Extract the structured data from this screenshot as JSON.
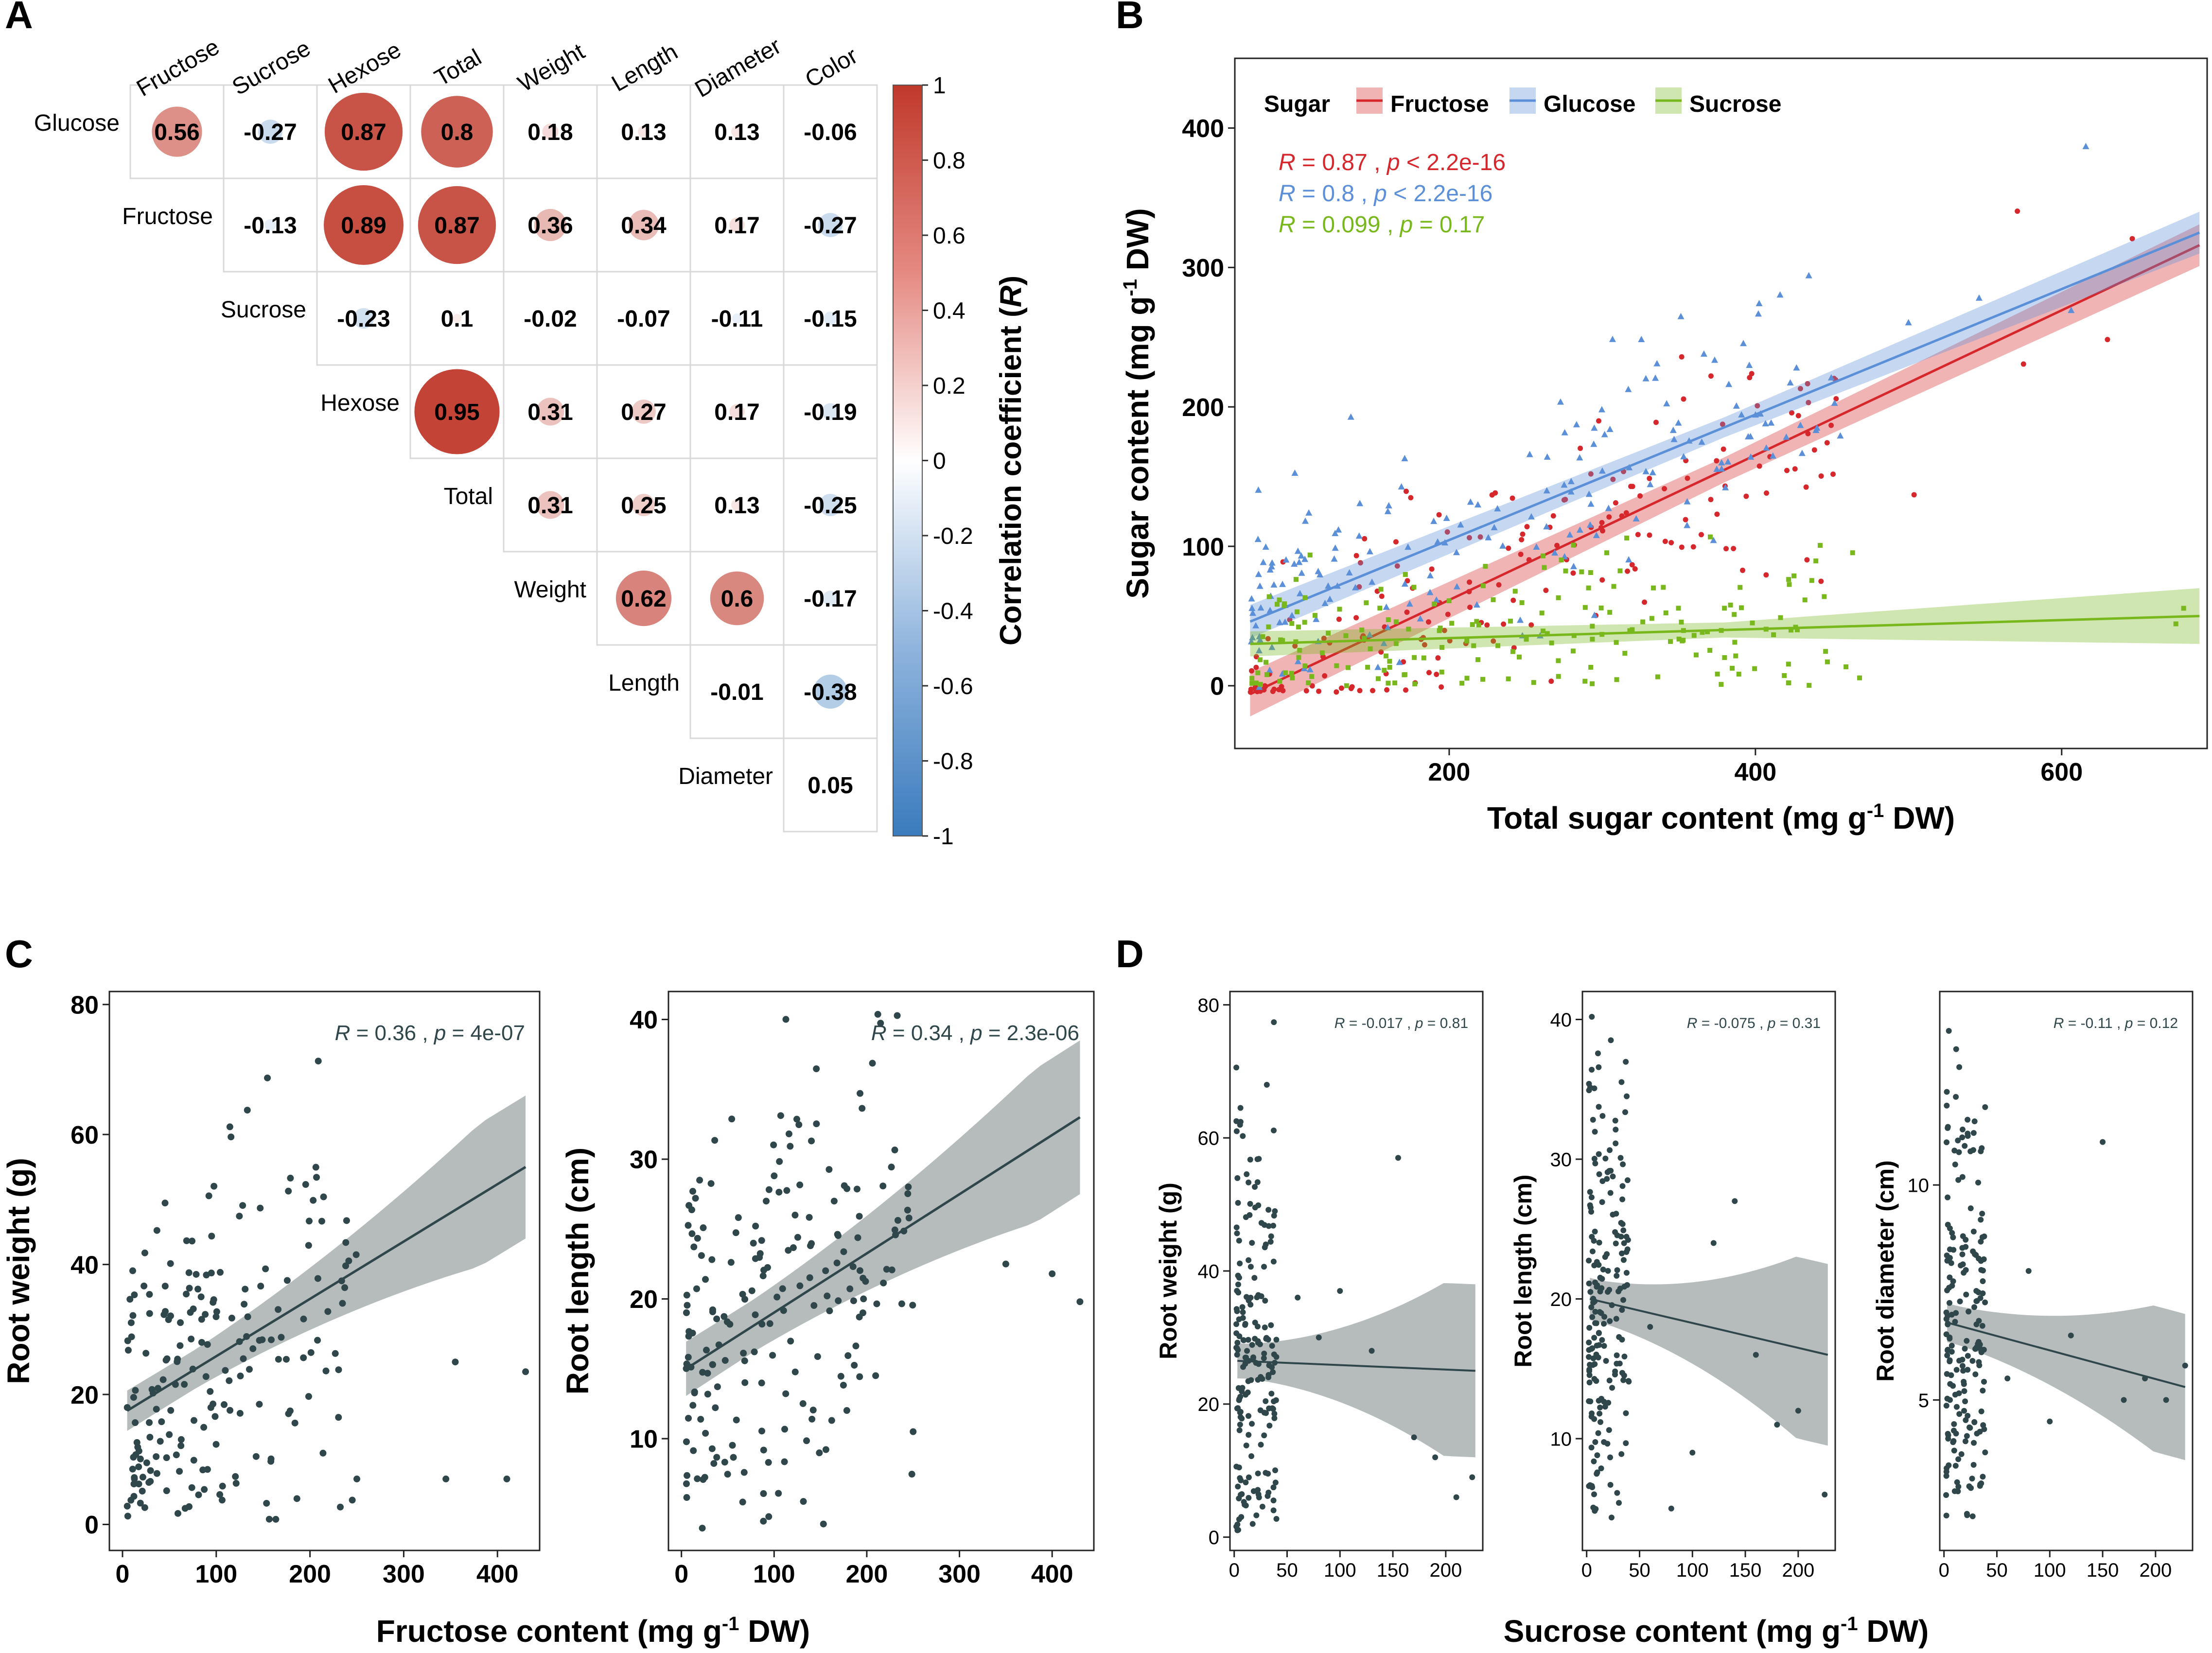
{
  "panels": {
    "A": "A",
    "B": "B",
    "C": "C",
    "D": "D"
  },
  "colors": {
    "fructose": "#d6272c",
    "glucose": "#5b8fd8",
    "sucrose": "#78b81c",
    "dots": "#2f464a",
    "band": "#a9b0b0",
    "pos": "#c0392b",
    "neg": "#3a7bbd"
  },
  "chart_data": [
    {
      "id": "A",
      "type": "heatmap",
      "title": "",
      "row_labels": [
        "Glucose",
        "Fructose",
        "Sucrose",
        "Hexose",
        "Total",
        "Weight",
        "Length",
        "Diameter"
      ],
      "col_labels": [
        "Fructose",
        "Sucrose",
        "Hexose",
        "Total",
        "Weight",
        "Length",
        "Diameter",
        "Color"
      ],
      "values": [
        [
          0.56,
          -0.27,
          0.87,
          0.8,
          0.18,
          0.13,
          0.13,
          -0.06
        ],
        [
          null,
          -0.13,
          0.89,
          0.87,
          0.36,
          0.34,
          0.17,
          -0.27
        ],
        [
          null,
          null,
          -0.23,
          0.1,
          -0.02,
          -0.07,
          -0.11,
          -0.15
        ],
        [
          null,
          null,
          null,
          0.95,
          0.31,
          0.27,
          0.17,
          -0.19
        ],
        [
          null,
          null,
          null,
          null,
          0.31,
          0.25,
          0.13,
          -0.25
        ],
        [
          null,
          null,
          null,
          null,
          null,
          0.62,
          0.6,
          -0.17
        ],
        [
          null,
          null,
          null,
          null,
          null,
          null,
          -0.01,
          -0.38
        ],
        [
          null,
          null,
          null,
          null,
          null,
          null,
          null,
          0.05
        ]
      ],
      "display": [
        [
          "0.56",
          "-0.27",
          "0.87",
          "0.8",
          "0.18",
          "0.13",
          "0.13",
          "-0.06"
        ],
        [
          "",
          "-0.13",
          "0.89",
          "0.87",
          "0.36",
          "0.34",
          "0.17",
          "-0.27"
        ],
        [
          "",
          "",
          "-0.23",
          "0.1",
          "-0.02",
          "-0.07",
          "-0.11",
          "-0.15"
        ],
        [
          "",
          "",
          "",
          "0.95",
          "0.31",
          "0.27",
          "0.17",
          "-0.19"
        ],
        [
          "",
          "",
          "",
          "",
          "0.31",
          "0.25",
          "0.13",
          "-0.25"
        ],
        [
          "",
          "",
          "",
          "",
          "",
          "0.62",
          "0.6",
          "-0.17"
        ],
        [
          "",
          "",
          "",
          "",
          "",
          "",
          "-0.01",
          "-0.38"
        ],
        [
          "",
          "",
          "",
          "",
          "",
          "",
          "",
          "0.05"
        ]
      ],
      "colorbar": {
        "ticks": [
          "1",
          "0.8",
          "0.6",
          "0.4",
          "0.2",
          "0",
          "-0.2",
          "-0.4",
          "-0.6",
          "-0.8",
          "-1"
        ],
        "range": [
          -1,
          1
        ],
        "label": "Correlation coefficient (",
        "label_italic": "R",
        "label_end": ")"
      }
    },
    {
      "id": "B",
      "type": "scatter",
      "xlabel": "Total sugar content (mg g",
      "xlabel_sup": "-1",
      "xlabel_end": " DW)",
      "ylabel": "Sugar content (mg g",
      "ylabel_sup": "-1",
      "ylabel_end": " DW)",
      "xlim": [
        60,
        695
      ],
      "ylim": [
        -45,
        450
      ],
      "xticks": [
        "200",
        "400",
        "600"
      ],
      "yticks": [
        "0",
        "100",
        "200",
        "300",
        "400"
      ],
      "legend": {
        "title": "Sugar",
        "entries": [
          "Fructose",
          "Glucose",
          "Sucrose"
        ]
      },
      "annotations": [
        {
          "r_label": "R",
          "r_value": " = 0.87 , ",
          "p_label": "p",
          "p_value": " < 2.2e-16"
        },
        {
          "r_label": "R",
          "r_value": " = 0.8 , ",
          "p_label": "p",
          "p_value": " < 2.2e-16"
        },
        {
          "r_label": "R",
          "r_value": " = 0.099 , ",
          "p_label": "p",
          "p_value": " = 0.17"
        }
      ],
      "series": [
        {
          "name": "Fructose",
          "fit": [
            [
              70,
              -6
            ],
            [
              690,
              316
            ]
          ],
          "band_start": 16,
          "band_end": 15,
          "n": 190,
          "seed": 11,
          "xrange": [
            70,
            690
          ],
          "noise": 40
        },
        {
          "name": "Glucose",
          "fit": [
            [
              70,
              46
            ],
            [
              690,
              325
            ]
          ],
          "band_start": 12,
          "band_end": 15,
          "n": 190,
          "seed": 23,
          "xrange": [
            70,
            690
          ],
          "noise": 38
        },
        {
          "name": "Sucrose",
          "fit": [
            [
              70,
              30
            ],
            [
              690,
              50
            ]
          ],
          "band_start": 9,
          "band_end": 20,
          "n": 190,
          "seed": 37,
          "xrange": [
            70,
            690
          ],
          "noise": 28
        }
      ]
    },
    {
      "id": "C1",
      "type": "scatter",
      "xlabel": "",
      "ylabel": "Root weight (g)",
      "xlim": [
        -14,
        445
      ],
      "ylim": [
        -4,
        82
      ],
      "xticks": [
        "0",
        "100",
        "200",
        "300",
        "400"
      ],
      "yticks": [
        "0",
        "20",
        "40",
        "60",
        "80"
      ],
      "annotation": {
        "r_label": "R",
        "r_value": " = 0.36 , ",
        "p_label": "p",
        "p_value": " = 4e-07"
      },
      "fit": [
        [
          5,
          17.5
        ],
        [
          430,
          55
        ]
      ],
      "band_start": 4,
      "band_end": 11,
      "n": 200,
      "seed": 5,
      "xrange": [
        5,
        250
      ],
      "noise": 16,
      "ymin": 0.5,
      "ymax": 78,
      "outliers": [
        [
          250,
          7
        ],
        [
          345,
          7
        ],
        [
          355,
          25
        ],
        [
          410,
          7
        ],
        [
          430,
          23.5
        ]
      ]
    },
    {
      "id": "C2",
      "type": "scatter",
      "xlabel": "",
      "ylabel": "Root length (cm)",
      "xlim": [
        -14,
        445
      ],
      "ylim": [
        2,
        42
      ],
      "xticks": [
        "0",
        "100",
        "200",
        "300",
        "400"
      ],
      "yticks": [
        "10",
        "20",
        "30",
        "40"
      ],
      "annotation": {
        "r_label": "R",
        "r_value": " = 0.34 , ",
        "p_label": "p",
        "p_value": " = 2.3e-06"
      },
      "fit": [
        [
          5,
          15
        ],
        [
          430,
          33
        ]
      ],
      "band_start": 2.5,
      "band_end": 5.5,
      "n": 200,
      "seed": 8,
      "xrange": [
        5,
        250
      ],
      "noise": 8,
      "ymin": 3.5,
      "ymax": 40.5,
      "outliers": [
        [
          250,
          10.5
        ],
        [
          350,
          22.5
        ],
        [
          400,
          21.8
        ],
        [
          430,
          19.8
        ]
      ]
    },
    {
      "id": "D1",
      "type": "scatter",
      "xlabel": "",
      "ylabel": "Root weight (g)",
      "xlim": [
        -4,
        235
      ],
      "ylim": [
        -2,
        82
      ],
      "xticks": [
        "0",
        "50",
        "100",
        "150",
        "200"
      ],
      "yticks": [
        "0",
        "20",
        "40",
        "60",
        "80"
      ],
      "annotation": {
        "r_label": "R",
        "r_value": " = -0.017 , ",
        "p_label": "p",
        "p_value": " = 0.81"
      },
      "fit": [
        [
          3,
          26.5
        ],
        [
          228,
          25
        ]
      ],
      "band_start": 3.5,
      "band_end": 13,
      "n": 190,
      "seed": 13,
      "xrange": [
        2,
        40
      ],
      "noise": 20,
      "ymin": 1,
      "ymax": 78,
      "outliers": [
        [
          60,
          36
        ],
        [
          80,
          30
        ],
        [
          100,
          37
        ],
        [
          130,
          28
        ],
        [
          155,
          57
        ],
        [
          170,
          15
        ],
        [
          190,
          12
        ],
        [
          210,
          6
        ],
        [
          225,
          9
        ]
      ]
    },
    {
      "id": "D2",
      "type": "scatter",
      "xlabel": "",
      "ylabel": "Root length (cm)",
      "xlim": [
        -4,
        235
      ],
      "ylim": [
        2,
        42
      ],
      "xticks": [
        "0",
        "50",
        "100",
        "150",
        "200"
      ],
      "yticks": [
        "10",
        "20",
        "30",
        "40"
      ],
      "annotation": {
        "r_label": "R",
        "r_value": " = -0.075 , ",
        "p_label": "p",
        "p_value": " = 0.31"
      },
      "fit": [
        [
          3,
          20
        ],
        [
          228,
          16
        ]
      ],
      "band_start": 2,
      "band_end": 6.5,
      "n": 190,
      "seed": 19,
      "xrange": [
        2,
        40
      ],
      "noise": 9,
      "ymin": 3.5,
      "ymax": 40.5,
      "outliers": [
        [
          60,
          18
        ],
        [
          80,
          5
        ],
        [
          100,
          9
        ],
        [
          120,
          24
        ],
        [
          140,
          27
        ],
        [
          160,
          16
        ],
        [
          180,
          11
        ],
        [
          200,
          12
        ],
        [
          225,
          6
        ]
      ]
    },
    {
      "id": "D3",
      "type": "scatter",
      "xlabel": "",
      "ylabel": "Root diameter (cm)",
      "xlim": [
        -4,
        235
      ],
      "ylim": [
        1.5,
        14.5
      ],
      "xticks": [
        "0",
        "50",
        "100",
        "150",
        "200"
      ],
      "yticks": [
        "5",
        "10"
      ],
      "annotation": {
        "r_label": "R",
        "r_value": " = -0.11 , ",
        "p_label": "p",
        "p_value": " = 0.12"
      },
      "fit": [
        [
          3,
          6.8
        ],
        [
          228,
          5.3
        ]
      ],
      "band_start": 0.6,
      "band_end": 1.7,
      "n": 190,
      "seed": 29,
      "xrange": [
        2,
        40
      ],
      "noise": 2.6,
      "ymin": 2.2,
      "ymax": 13.8,
      "outliers": [
        [
          60,
          5.5
        ],
        [
          80,
          8
        ],
        [
          100,
          4.5
        ],
        [
          120,
          6.5
        ],
        [
          150,
          11
        ],
        [
          170,
          5
        ],
        [
          190,
          5.5
        ],
        [
          210,
          5
        ],
        [
          228,
          5.8
        ]
      ]
    }
  ],
  "shared_xlabel_C": {
    "text": "Fructose content (mg g",
    "sup": "-1",
    "end": " DW)"
  },
  "shared_xlabel_D": {
    "text": "Sucrose content (mg g",
    "sup": "-1",
    "end": " DW)"
  }
}
